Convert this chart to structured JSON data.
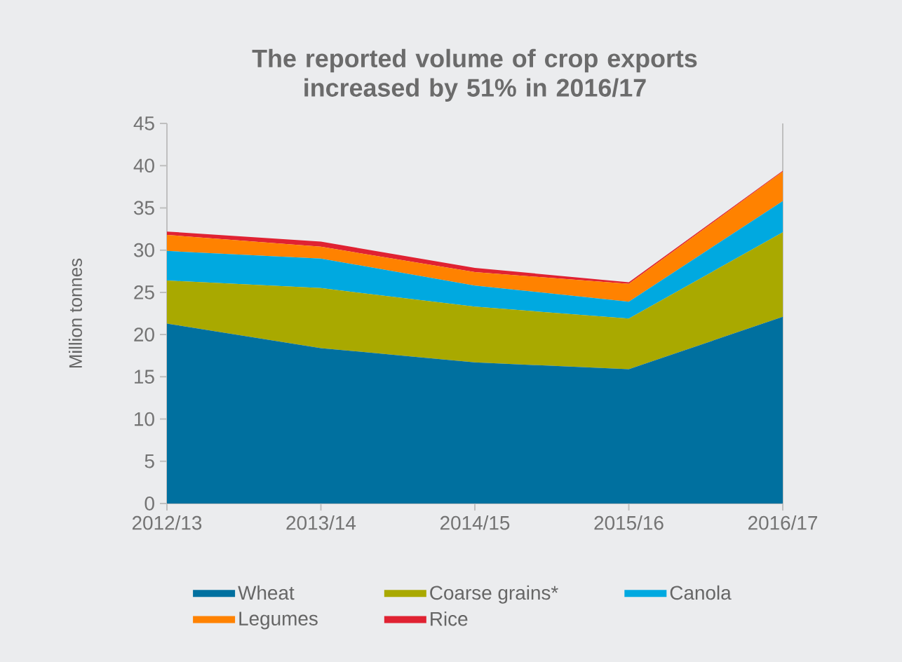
{
  "chart_data": {
    "type": "area",
    "stacked": true,
    "title": "The reported volume of crop exports increased by 51% in 2016/17",
    "ylabel": "Million tonnes",
    "categories": [
      "2012/13",
      "2013/14",
      "2014/15",
      "2015/16",
      "2016/17"
    ],
    "series": [
      {
        "name": "Wheat",
        "color": "#00709f",
        "values": [
          21.3,
          18.4,
          16.7,
          15.9,
          22.1
        ]
      },
      {
        "name": "Coarse grains*",
        "color": "#a9a900",
        "values": [
          5.1,
          7.1,
          6.6,
          6.0,
          10.0
        ]
      },
      {
        "name": "Canola",
        "color": "#00a9e0",
        "values": [
          3.5,
          3.5,
          2.5,
          2.0,
          3.7
        ]
      },
      {
        "name": "Legumes",
        "color": "#ff8200",
        "values": [
          1.9,
          1.4,
          1.6,
          2.1,
          3.5
        ]
      },
      {
        "name": "Rice",
        "color": "#e02232",
        "values": [
          0.4,
          0.6,
          0.5,
          0.2,
          0.1
        ]
      }
    ],
    "ylim": [
      0,
      45
    ],
    "yticks": [
      0,
      5,
      10,
      15,
      20,
      25,
      30,
      35,
      40,
      45
    ],
    "legend": "bottom"
  }
}
